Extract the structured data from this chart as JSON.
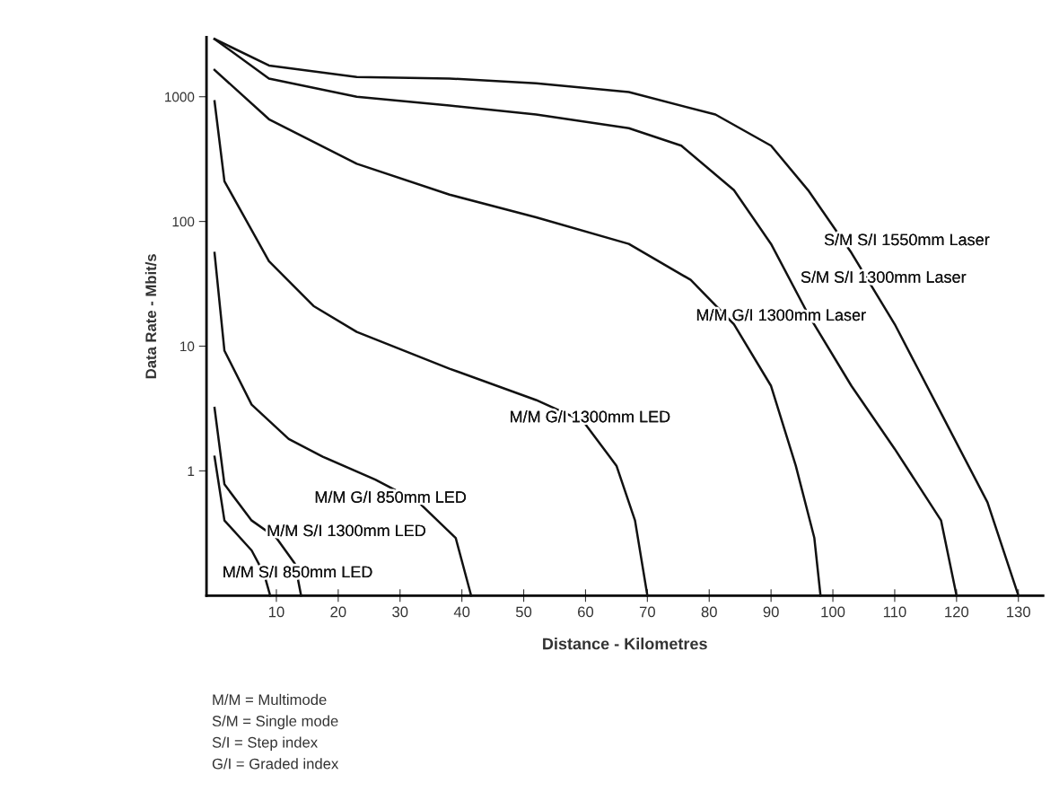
{
  "chart_data": {
    "type": "line",
    "xlabel": "Distance - Kilometres",
    "ylabel": "Data Rate - Mbit/s",
    "log": "y",
    "grid": false,
    "legend": false,
    "marker": "none",
    "line_style": "solid",
    "xlim": [
      -1.3,
      134
    ],
    "xticks": [
      10,
      20,
      30,
      40,
      50,
      60,
      70,
      80,
      90,
      100,
      110,
      120,
      130
    ],
    "ylim": [
      0.1,
      3000
    ],
    "yticks": [
      1,
      10,
      100,
      1000
    ],
    "series": [
      {
        "name": "S/M S/I 1550mm Laser",
        "color": "#111111",
        "x": [
          0,
          8.8,
          23,
          38,
          52,
          67,
          81,
          90,
          96,
          103,
          110,
          117.5,
          125,
          130
        ],
        "values": [
          2900,
          1780,
          1440,
          1400,
          1280,
          1090,
          720,
          405,
          178,
          56,
          15,
          2.9,
          0.56,
          0.1
        ]
      },
      {
        "name": "S/M S/I 1300mm Laser",
        "color": "#111111",
        "x": [
          0,
          8.8,
          23,
          38,
          52,
          67,
          75.5,
          84,
          90,
          96,
          103,
          110,
          117.5,
          120
        ],
        "values": [
          2900,
          1400,
          1000,
          850,
          720,
          560,
          405,
          178,
          66,
          18,
          4.8,
          1.5,
          0.4,
          0.1
        ]
      },
      {
        "name": "M/M G/I 1300mm Laser",
        "color": "#111111",
        "x": [
          0,
          8.8,
          23,
          38,
          52,
          67,
          77,
          84,
          90,
          94,
          97,
          98
        ],
        "values": [
          1640,
          660,
          290,
          164,
          108,
          66,
          34,
          15,
          4.8,
          1.1,
          0.29,
          0.1
        ]
      },
      {
        "name": "M/M G/I 1300mm LED",
        "color": "#111111",
        "x": [
          0,
          1.6,
          8.8,
          16,
          23,
          38,
          52,
          59.6,
          65,
          68,
          70
        ],
        "values": [
          920,
          210,
          48,
          21,
          13,
          6.6,
          3.7,
          2.5,
          1.1,
          0.4,
          0.1
        ]
      },
      {
        "name": "M/M G/I 850mm LED",
        "color": "#111111",
        "x": [
          0,
          1.6,
          6,
          12,
          17.5,
          26,
          33,
          39,
          41.5
        ],
        "values": [
          56,
          9.2,
          3.4,
          1.8,
          1.3,
          0.85,
          0.56,
          0.29,
          0.1
        ]
      },
      {
        "name": "M/M S/I 1300mm LED",
        "color": "#111111",
        "x": [
          0,
          1.6,
          6,
          10,
          13,
          14
        ],
        "values": [
          3.2,
          0.78,
          0.4,
          0.29,
          0.18,
          0.1
        ]
      },
      {
        "name": "M/M S/I 850mm LED",
        "color": "#111111",
        "x": [
          0,
          1.6,
          6,
          8,
          9
        ],
        "values": [
          1.3,
          0.4,
          0.23,
          0.15,
          0.1
        ]
      }
    ],
    "annotations": [
      "M/M = Multimode",
      "S/M = Single mode",
      "S/I = Step index",
      "G/I = Graded index"
    ]
  }
}
